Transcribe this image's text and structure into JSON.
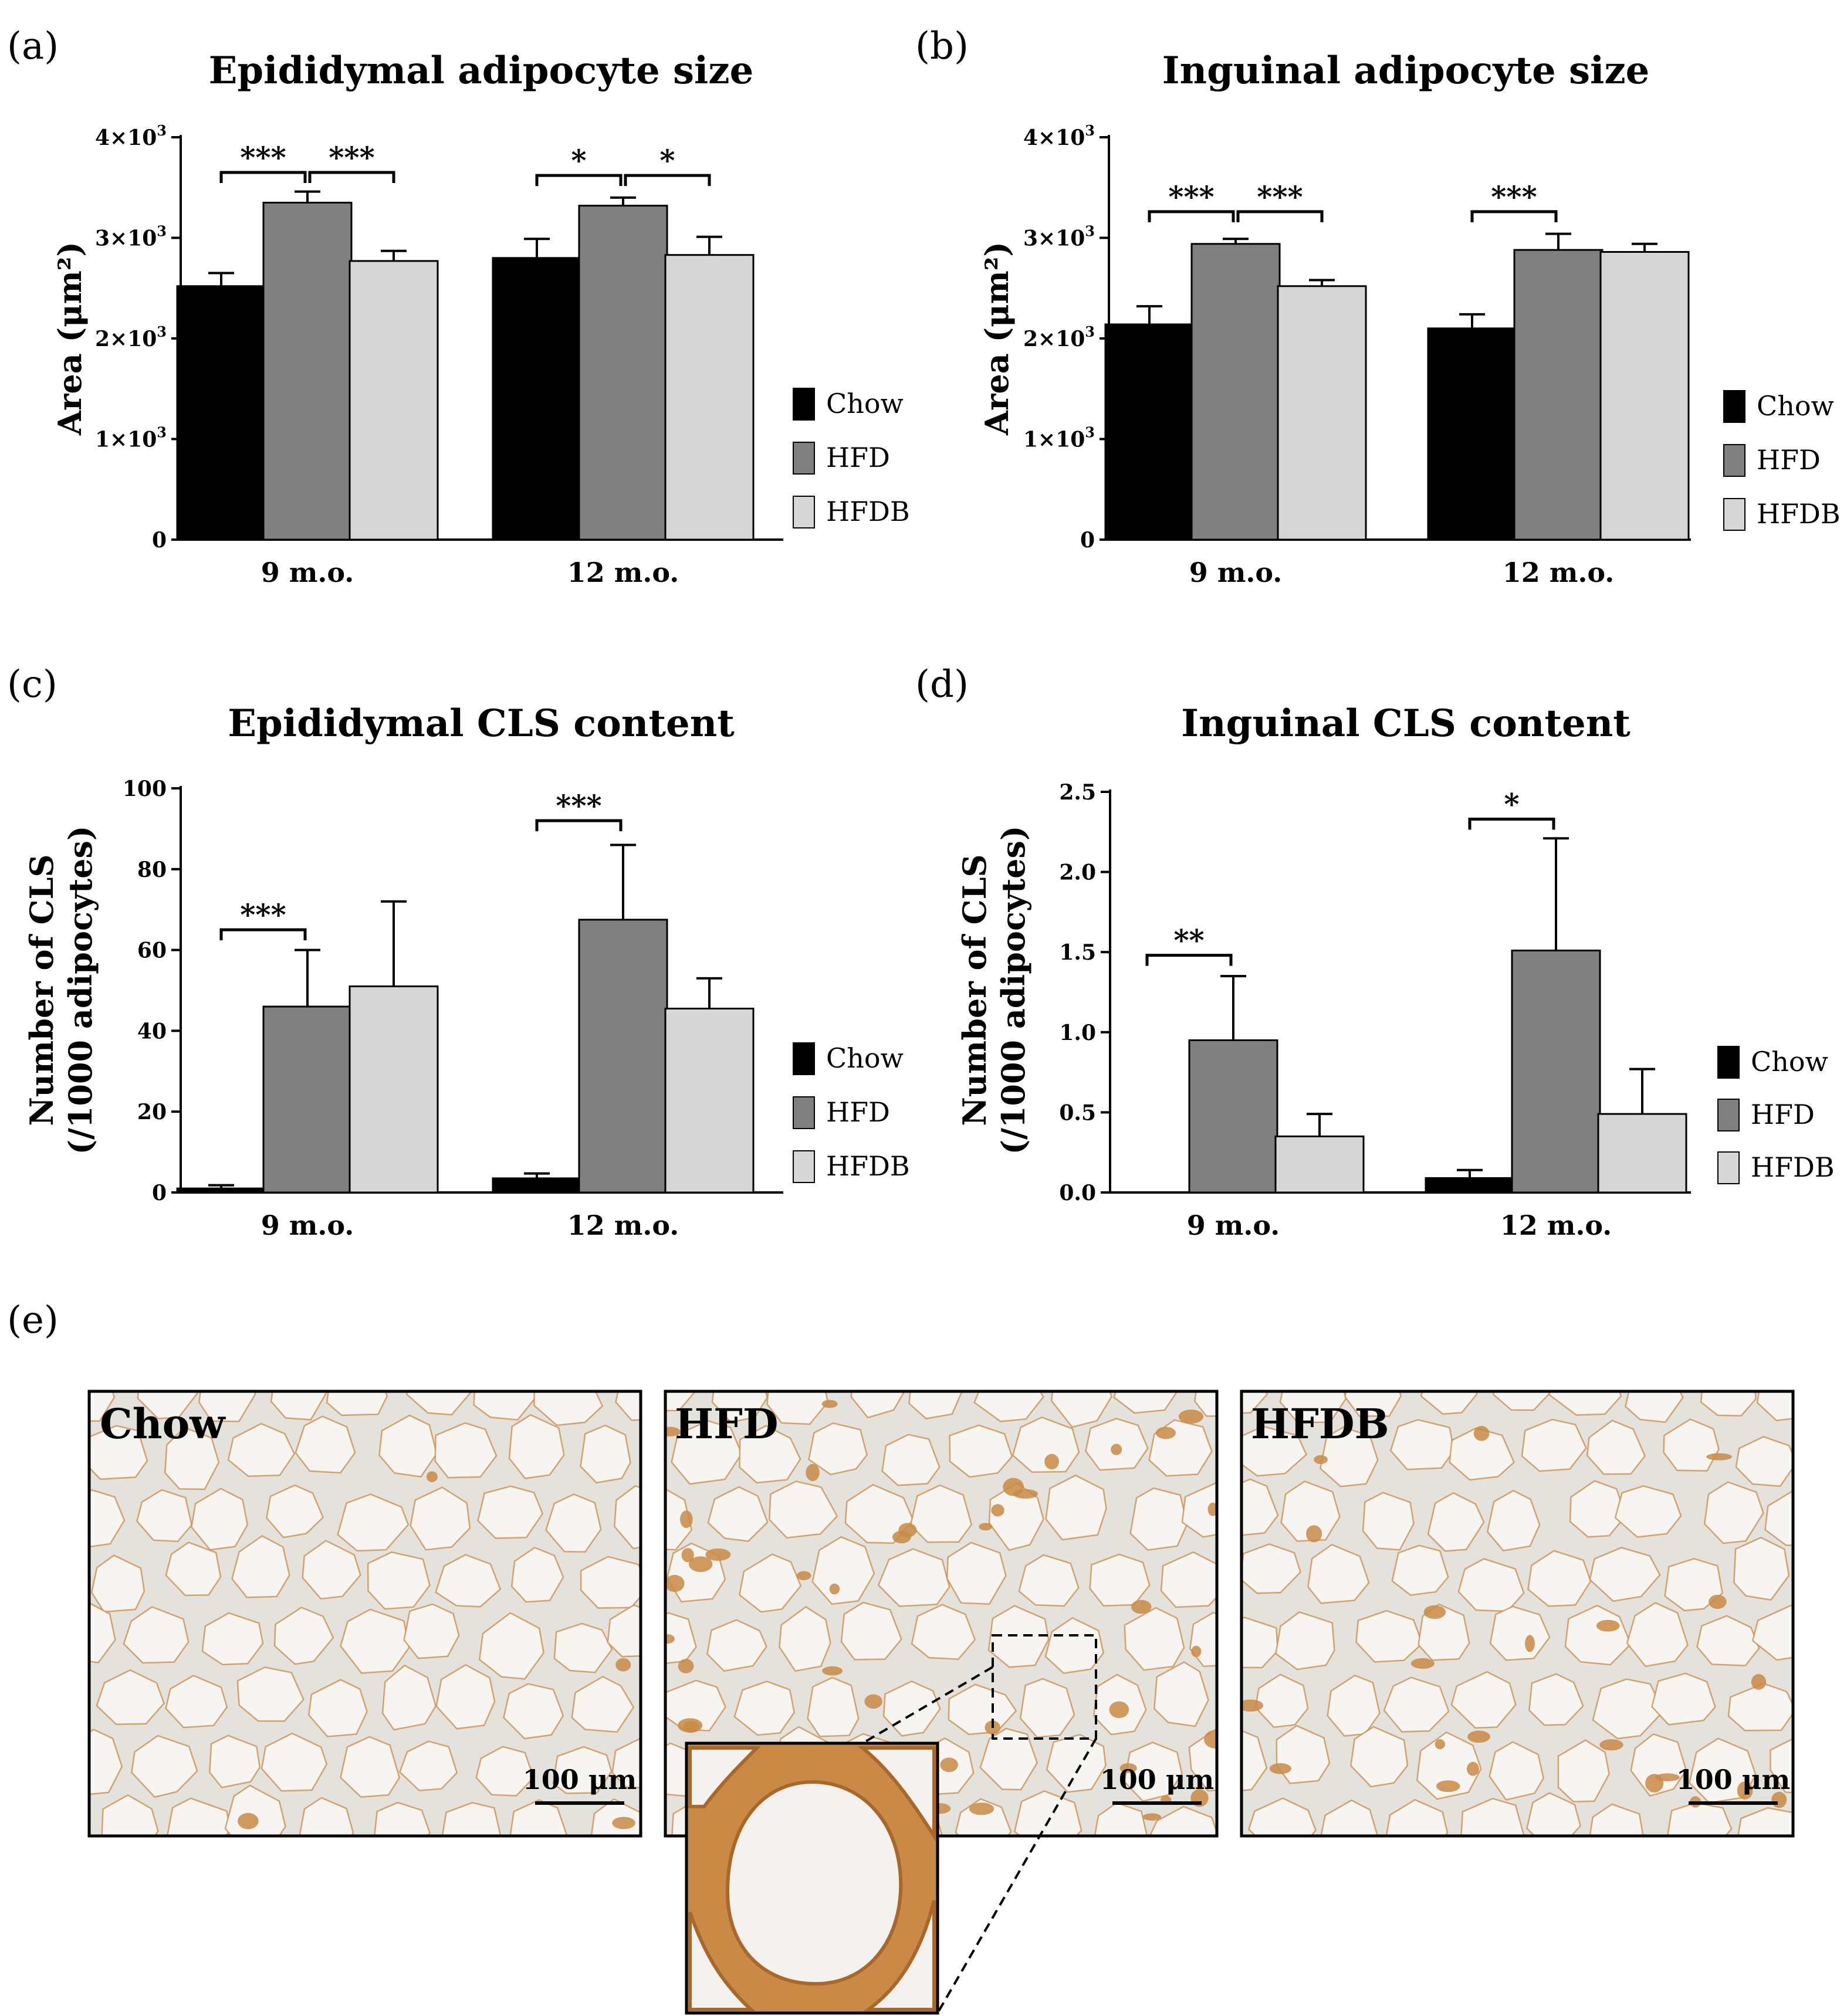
{
  "panels": {
    "a": {
      "label": "(a)"
    },
    "b": {
      "label": "(b)"
    },
    "c": {
      "label": "(c)"
    },
    "d": {
      "label": "(d)"
    },
    "e": {
      "label": "(e)"
    }
  },
  "chart_data": [
    {
      "id": "a",
      "type": "bar",
      "title": "Epididymal adipocyte size",
      "ylabel": "Area (μm²)",
      "ylim": [
        0,
        4000
      ],
      "yticks": [
        {
          "v": 0,
          "m": "0",
          "e": ""
        },
        {
          "v": 1000,
          "m": "1×10",
          "e": "3"
        },
        {
          "v": 2000,
          "m": "2×10",
          "e": "3"
        },
        {
          "v": 3000,
          "m": "3×10",
          "e": "3"
        },
        {
          "v": 4000,
          "m": "4×10",
          "e": "3"
        }
      ],
      "categories": [
        "9 m.o.",
        "12 m.o."
      ],
      "series": [
        {
          "name": "Chow",
          "color": "#000000",
          "values": [
            2520,
            2800
          ],
          "errors": [
            130,
            190
          ]
        },
        {
          "name": "HFD",
          "color": "#808080",
          "values": [
            3350,
            3320
          ],
          "errors": [
            110,
            80
          ]
        },
        {
          "name": "HFDB",
          "color": "#d6d6d6",
          "values": [
            2770,
            2830
          ],
          "errors": [
            100,
            180
          ]
        }
      ],
      "significance": [
        {
          "group": 0,
          "from": 0,
          "to": 1,
          "y": 3650,
          "label": "***"
        },
        {
          "group": 0,
          "from": 1,
          "to": 2,
          "y": 3650,
          "label": "***"
        },
        {
          "group": 1,
          "from": 0,
          "to": 1,
          "y": 3620,
          "label": "*"
        },
        {
          "group": 1,
          "from": 1,
          "to": 2,
          "y": 3620,
          "label": "*"
        }
      ]
    },
    {
      "id": "b",
      "type": "bar",
      "title": "Inguinal adipocyte size",
      "ylabel": "Area (μm²)",
      "ylim": [
        0,
        4000
      ],
      "yticks": [
        {
          "v": 0,
          "m": "0",
          "e": ""
        },
        {
          "v": 1000,
          "m": "1×10",
          "e": "3"
        },
        {
          "v": 2000,
          "m": "2×10",
          "e": "3"
        },
        {
          "v": 3000,
          "m": "3×10",
          "e": "3"
        },
        {
          "v": 4000,
          "m": "4×10",
          "e": "3"
        }
      ],
      "categories": [
        "9 m.o.",
        "12 m.o."
      ],
      "series": [
        {
          "name": "Chow",
          "color": "#000000",
          "values": [
            2140,
            2100
          ],
          "errors": [
            180,
            140
          ]
        },
        {
          "name": "HFD",
          "color": "#808080",
          "values": [
            2940,
            2880
          ],
          "errors": [
            50,
            160
          ]
        },
        {
          "name": "HFDB",
          "color": "#d6d6d6",
          "values": [
            2520,
            2860
          ],
          "errors": [
            60,
            80
          ]
        }
      ],
      "significance": [
        {
          "group": 0,
          "from": 0,
          "to": 1,
          "y": 3260,
          "label": "***"
        },
        {
          "group": 0,
          "from": 1,
          "to": 2,
          "y": 3260,
          "label": "***"
        },
        {
          "group": 1,
          "from": 0,
          "to": 1,
          "y": 3260,
          "label": "***"
        }
      ]
    },
    {
      "id": "c",
      "type": "bar",
      "title": "Epididymal CLS content",
      "ylabel": "Number of CLS",
      "ylabel2": "(/1000 adipocytes)",
      "ylim": [
        0,
        100
      ],
      "yticks": [
        {
          "v": 0,
          "m": "0",
          "e": ""
        },
        {
          "v": 20,
          "m": "20",
          "e": ""
        },
        {
          "v": 40,
          "m": "40",
          "e": ""
        },
        {
          "v": 60,
          "m": "60",
          "e": ""
        },
        {
          "v": 80,
          "m": "80",
          "e": ""
        },
        {
          "v": 100,
          "m": "100",
          "e": ""
        }
      ],
      "categories": [
        "9 m.o.",
        "12 m.o."
      ],
      "series": [
        {
          "name": "Chow",
          "color": "#000000",
          "values": [
            1,
            3.5
          ],
          "errors": [
            0.8,
            1.2
          ]
        },
        {
          "name": "HFD",
          "color": "#808080",
          "values": [
            46,
            67.5
          ],
          "errors": [
            14,
            18.5
          ]
        },
        {
          "name": "HFDB",
          "color": "#d6d6d6",
          "values": [
            51,
            45.5
          ],
          "errors": [
            21,
            7.5
          ]
        }
      ],
      "significance": [
        {
          "group": 0,
          "from": 0,
          "to": 1,
          "y": 65,
          "label": "***"
        },
        {
          "group": 1,
          "from": 0,
          "to": 1,
          "y": 92,
          "label": "***"
        }
      ]
    },
    {
      "id": "d",
      "type": "bar",
      "title": "Inguinal CLS content",
      "ylabel": "Number of CLS",
      "ylabel2": "(/1000 adipocytes)",
      "ylim": [
        0,
        2.5
      ],
      "yticks": [
        {
          "v": 0,
          "m": "0.0",
          "e": ""
        },
        {
          "v": 0.5,
          "m": "0.5",
          "e": ""
        },
        {
          "v": 1.0,
          "m": "1.0",
          "e": ""
        },
        {
          "v": 1.5,
          "m": "1.5",
          "e": ""
        },
        {
          "v": 2.0,
          "m": "2.0",
          "e": ""
        },
        {
          "v": 2.5,
          "m": "2.5",
          "e": ""
        }
      ],
      "categories": [
        "9 m.o.",
        "12 m.o."
      ],
      "series": [
        {
          "name": "Chow",
          "color": "#000000",
          "values": [
            0,
            0.09
          ],
          "errors": [
            0,
            0.05
          ]
        },
        {
          "name": "HFD",
          "color": "#808080",
          "values": [
            0.95,
            1.51
          ],
          "errors": [
            0.4,
            0.7
          ]
        },
        {
          "name": "HFDB",
          "color": "#d6d6d6",
          "values": [
            0.35,
            0.49
          ],
          "errors": [
            0.14,
            0.28
          ]
        }
      ],
      "significance": [
        {
          "group": 0,
          "from": 0,
          "to": 1,
          "y": 1.48,
          "label": "**"
        },
        {
          "group": 1,
          "from": 0,
          "to": 1,
          "y": 2.33,
          "label": "*"
        }
      ]
    }
  ],
  "micrographs": {
    "images": [
      {
        "label": "Chow",
        "scale_bar": "100 μm"
      },
      {
        "label": "HFD",
        "scale_bar": "100 μm"
      },
      {
        "label": "HFDB",
        "scale_bar": "100 μm"
      }
    ],
    "stain_color": "#c98a45",
    "background_color": "#e4e2dd"
  }
}
